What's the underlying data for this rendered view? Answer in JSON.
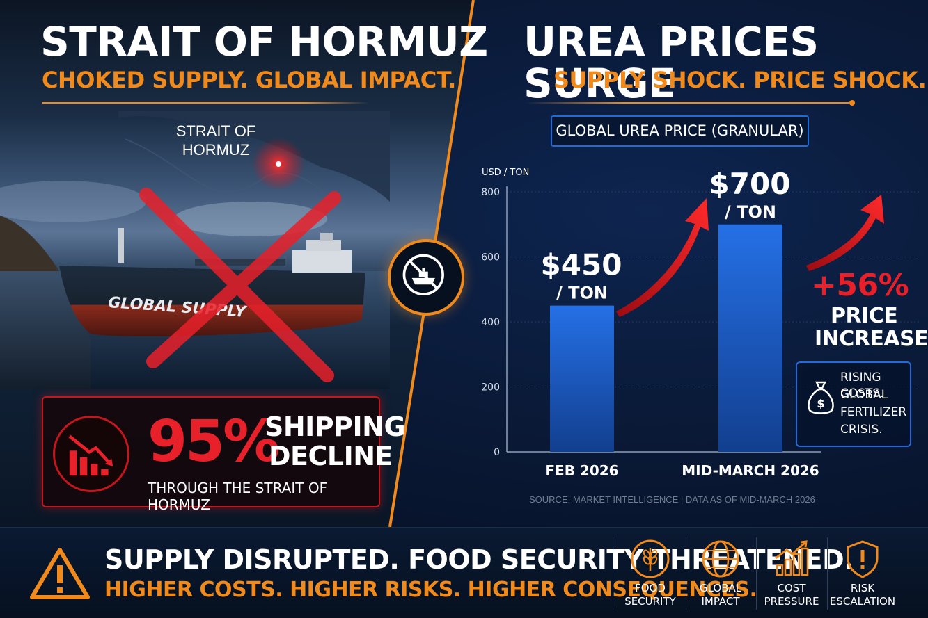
{
  "left": {
    "title": "STRAIT OF HORMUZ",
    "subtitle": "CHOKED SUPPLY. GLOBAL IMPACT.",
    "map_label_line1": "STRAIT OF",
    "map_label_line2": "HORMUZ",
    "ship_name": "GLOBAL SUPPLY",
    "decline": {
      "percent": "95%",
      "word1": "SHIPPING",
      "word2": "DECLINE",
      "subtext": "THROUGH THE STRAIT OF HORMUZ"
    }
  },
  "right": {
    "title": "UREA PRICES SURGE",
    "subtitle": "SUPPLY SHOCK. PRICE SHOCK.",
    "chart_title": "GLOBAL UREA PRICE (GRANULAR)",
    "increase": {
      "percent": "+56%",
      "word1": "PRICE",
      "word2": "INCREASE"
    },
    "costs_note": [
      "RISING COSTS.",
      "GLOBAL",
      "FERTILIZER",
      "CRISIS."
    ],
    "source": "SOURCE: MARKET INTELLIGENCE | DATA AS OF MID-MARCH 2026"
  },
  "chart_data": {
    "type": "bar",
    "title": "GLOBAL UREA PRICE (GRANULAR)",
    "ylabel": "USD / TON",
    "xlabel": "",
    "ylim": [
      0,
      800
    ],
    "yticks": [
      0,
      200,
      400,
      600,
      800
    ],
    "grid": true,
    "categories": [
      "FEB 2026",
      "MID-MARCH 2026"
    ],
    "values": [
      450,
      700
    ],
    "data_labels": [
      {
        "value": "$450",
        "unit": "/ TON"
      },
      {
        "value": "$700",
        "unit": "/ TON"
      }
    ],
    "bar_color": "#1f62d4"
  },
  "footer": {
    "main": "SUPPLY DISRUPTED. FOOD SECURITY THREATENED.",
    "sub": "HIGHER COSTS. HIGHER RISKS. HIGHER CONSEQUENCES.",
    "items": [
      {
        "icon": "wheat-icon",
        "line1": "FOOD",
        "line2": "SECURITY"
      },
      {
        "icon": "globe-icon",
        "line1": "GLOBAL",
        "line2": "IMPACT"
      },
      {
        "icon": "rising-bars-icon",
        "line1": "COST",
        "line2": "PRESSURE"
      },
      {
        "icon": "shield-alert-icon",
        "line1": "RISK",
        "line2": "ESCALATION"
      }
    ]
  },
  "colors": {
    "accent_orange": "#f08a1c",
    "alert_red": "#e8202a",
    "chart_blue": "#1f62d4",
    "background_navy": "#081426"
  }
}
